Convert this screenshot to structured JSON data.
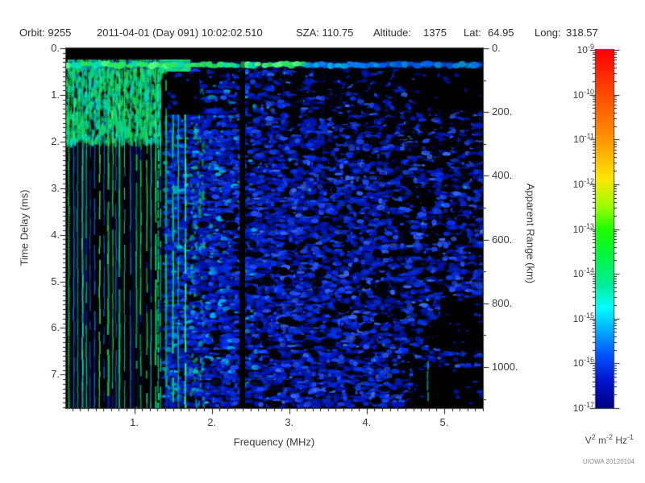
{
  "header": {
    "fields": [
      "Orbit: 9255",
      "2011-04-01 (Day 091) 10:02:02.510",
      "SZA: 110.75",
      "Altitude:",
      "1375",
      "Lat:",
      "64.95",
      "Long:",
      "318.57"
    ]
  },
  "watermark": "UIOWA 20120104",
  "chart_data": {
    "type": "heatmap",
    "description": "Radar sounder ionogram: received spectral density vs frequency and time delay",
    "x_axis": {
      "label": "Frequency (MHz)",
      "range": [
        0.12,
        5.5
      ],
      "major_ticks": [
        1,
        2,
        3,
        4,
        5
      ],
      "tick_labels": [
        "1.",
        "2.",
        "3.",
        "4.",
        "5."
      ],
      "minor_step": 0.1
    },
    "y_axis_left": {
      "label": "Time Delay (ms)",
      "range": [
        0,
        7.72
      ],
      "major_ticks": [
        0,
        1,
        2,
        3,
        4,
        5,
        6,
        7
      ],
      "tick_labels": [
        "0.",
        "1.",
        "2.",
        "3.",
        "4.",
        "5.",
        "6.",
        "7."
      ],
      "minor_step": 0.1,
      "direction": "down"
    },
    "y_axis_right": {
      "label": "Apparent Range (km)",
      "range": [
        0,
        1129
      ],
      "major_ticks": [
        0,
        200,
        400,
        600,
        800,
        1000
      ],
      "tick_labels": [
        "0.",
        "200.",
        "400.",
        "600.",
        "800.",
        "1000."
      ],
      "minor_step": 100
    },
    "colorbar": {
      "scale": "log",
      "exponents": [
        -9,
        -10,
        -11,
        -12,
        -13,
        -14,
        -15,
        -16,
        -17
      ],
      "unit_parts": [
        [
          "V",
          "2"
        ],
        [
          "m",
          "-2"
        ],
        [
          "Hz",
          "-1"
        ]
      ],
      "stops": [
        [
          0,
          "#ff0000"
        ],
        [
          0.12,
          "#ff4800"
        ],
        [
          0.25,
          "#ff9600"
        ],
        [
          0.36,
          "#ffe800"
        ],
        [
          0.44,
          "#96ff00"
        ],
        [
          0.5,
          "#1eff00"
        ],
        [
          0.58,
          "#00f646"
        ],
        [
          0.66,
          "#00eea0"
        ],
        [
          0.72,
          "#00ffff"
        ],
        [
          0.78,
          "#00b0ff"
        ],
        [
          0.85,
          "#0055ff"
        ],
        [
          0.92,
          "#0016d2"
        ],
        [
          1,
          "#000082"
        ]
      ]
    },
    "palette": {
      "background": "#000000",
      "stripe_green": "#00dc5a",
      "stripe_green_bright": "#35f06e",
      "stripe_cyan": "#00d8c8",
      "stripe_blue": "#0070ff",
      "speckle_deep": "#0016b8",
      "speckle_mid": "#0030e8",
      "speckle_bright": "#1e4cff",
      "speckle_cyan": "#00b4f0",
      "band_green": "#2ae85e",
      "band_green_bright": "#55ff7d",
      "band_cyan": "#00b4e8",
      "band_blue": "#0064ff",
      "accent_cyan": "#00e4d8"
    },
    "features": [
      {
        "id": "no-signal-band",
        "type": "void",
        "f_range": [
          0.12,
          5.5
        ],
        "t_range": [
          0,
          0.24
        ],
        "note": "black strip at zero delay"
      },
      {
        "id": "ionosphere-echo-trace",
        "type": "trace",
        "f_range": [
          0.12,
          5.5
        ],
        "t_range": [
          0.24,
          0.47
        ],
        "strong_until_mhz": 3.2,
        "note": "horizontal echo band, green fading to blue at high frequency"
      },
      {
        "id": "plasma-harmonic-stripes",
        "type": "stripes",
        "f_range": [
          0.12,
          1.72
        ],
        "t_range": [
          0.24,
          7.72
        ],
        "dense_until_mhz": 1.34,
        "note": "vertical green/cyan electron plasma oscillation harmonics"
      },
      {
        "id": "diffuse-speckle",
        "type": "speckle",
        "f_range": [
          1.42,
          5.5
        ],
        "t_range": [
          0.5,
          7.72
        ],
        "note": "diffuse blue noise blobs on black"
      },
      {
        "id": "instrument-gap",
        "type": "gap",
        "f_range": [
          2.36,
          2.43
        ],
        "t_range": [
          0.47,
          7.72
        ],
        "note": "black vertical dropout line"
      },
      {
        "id": "void-low",
        "type": "void",
        "f_range": [
          1.42,
          1.84
        ],
        "t_range": [
          0.5,
          1.42
        ]
      },
      {
        "id": "void-topright",
        "type": "void",
        "f_range": [
          4.62,
          5.5
        ],
        "t_range": [
          0.48,
          1.32
        ]
      },
      {
        "id": "void-right",
        "type": "void",
        "f_range": [
          4.95,
          5.5
        ],
        "t_range": [
          5.35,
          6.5
        ]
      },
      {
        "id": "void-botright",
        "type": "void",
        "f_range": [
          4.6,
          5.5
        ],
        "t_range": [
          6.85,
          7.72
        ]
      },
      {
        "id": "cyan-streak-1",
        "type": "streak",
        "f": 1.3,
        "t_range": [
          0.24,
          7.72
        ]
      },
      {
        "id": "cyan-streak-2",
        "type": "streak",
        "f": 4.78,
        "t_range": [
          6.7,
          7.6
        ]
      }
    ]
  }
}
